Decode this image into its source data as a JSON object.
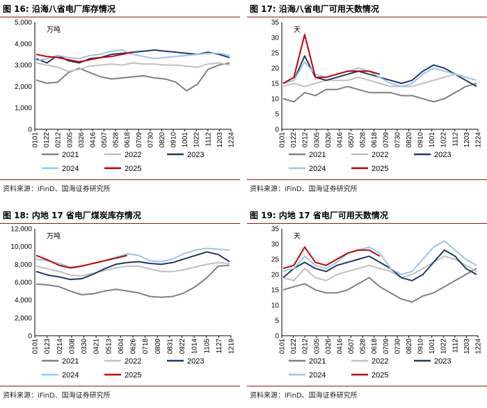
{
  "colors": {
    "2021": "#7f7f7f",
    "2022": "#bfbfbf",
    "2023": "#1f3864",
    "2024": "#9dc3e6",
    "2025": "#c00000",
    "rule": "#8a1a1a"
  },
  "charts": [
    {
      "title": "图 16:  沿海八省电厂库存情况",
      "source": "资料来源：iFinD、国海证券研究所",
      "chart_data": {
        "type": "line",
        "unit": "万吨",
        "xlabel": "",
        "ylabel": "",
        "x_ticks": [
          "0101",
          "0122",
          "0212",
          "0305",
          "0326",
          "0416",
          "0507",
          "0528",
          "0618",
          "0709",
          "0730",
          "0820",
          "0910",
          "1001",
          "1022",
          "1112",
          "1203",
          "1224"
        ],
        "ylim": [
          0,
          5000
        ],
        "y_ticks": [
          "0",
          "1,000",
          "2,000",
          "3,000",
          "4,000",
          "5,000"
        ],
        "legend": [
          "2021",
          "2022",
          "2023",
          "2024",
          "2025"
        ],
        "legend_position": "bottom",
        "series": [
          {
            "name": "2021",
            "values": [
              2300,
              2150,
              2200,
              2650,
              2850,
              2650,
              2450,
              2350,
              2400,
              2450,
              2500,
              2400,
              2350,
              2200,
              1800,
              2100,
              2800,
              3000,
              3100
            ]
          },
          {
            "name": "2022",
            "values": [
              3100,
              3000,
              2900,
              2700,
              2800,
              2950,
              3000,
              3050,
              3000,
              3100,
              3050,
              3050,
              3000,
              3000,
              2950,
              2900,
              3050,
              3100,
              3000
            ]
          },
          {
            "name": "2023",
            "values": [
              3300,
              3100,
              3450,
              3200,
              3100,
              3300,
              3350,
              3500,
              3550,
              3600,
              3650,
              3700,
              3650,
              3600,
              3550,
              3500,
              3600,
              3500,
              3350
            ]
          },
          {
            "name": "2024",
            "values": [
              3200,
              3300,
              3450,
              3350,
              3300,
              3450,
              3500,
              3650,
              3700,
              3500,
              3400,
              3300,
              3350,
              3400,
              3450,
              3500,
              3550,
              3550,
              3450
            ]
          },
          {
            "name": "2025",
            "values": [
              3500,
              3400,
              3350,
              3250,
              3150,
              3250,
              3350,
              3400,
              3500,
              3600
            ]
          }
        ]
      }
    },
    {
      "title": "图 17:  沿海八省电厂可用天数情况",
      "source": "资料来源：iFinD、国海证券研究所",
      "chart_data": {
        "type": "line",
        "unit": "天",
        "xlabel": "",
        "ylabel": "",
        "x_ticks": [
          "0101",
          "0122",
          "0212",
          "0305",
          "0326",
          "0416",
          "0507",
          "0528",
          "0618",
          "0709",
          "0730",
          "0820",
          "0910",
          "1001",
          "1022",
          "1112",
          "1203",
          "1224"
        ],
        "ylim": [
          0,
          35
        ],
        "y_ticks": [
          "0",
          "5",
          "10",
          "15",
          "20",
          "25",
          "30",
          "35"
        ],
        "legend": [
          "2021",
          "2022",
          "2023",
          "2024",
          "2025"
        ],
        "legend_position": "bottom",
        "series": [
          {
            "name": "2021",
            "values": [
              10,
              9,
              12,
              11,
              13,
              13,
              14,
              13,
              12,
              12,
              12,
              11,
              11,
              10,
              9,
              10,
              12,
              14,
              15
            ]
          },
          {
            "name": "2022",
            "values": [
              14,
              15,
              14,
              15,
              16,
              16,
              16,
              17,
              16,
              15,
              14,
              14,
              14,
              15,
              16,
              17,
              18,
              17,
              16
            ]
          },
          {
            "name": "2023",
            "values": [
              15,
              16,
              24,
              17,
              16,
              17,
              18,
              19,
              18,
              17,
              16,
              15,
              16,
              19,
              21,
              20,
              18,
              16,
              14
            ]
          },
          {
            "name": "2024",
            "values": [
              15,
              16,
              22,
              18,
              17,
              18,
              19,
              20,
              19,
              17,
              15,
              14,
              15,
              18,
              20,
              19,
              18,
              17,
              16
            ]
          },
          {
            "name": "2025",
            "values": [
              15,
              17,
              31,
              17,
              17,
              18,
              19,
              19,
              19,
              18
            ]
          }
        ]
      }
    },
    {
      "title": "图 18:  内地 17 省电厂煤炭库存情况",
      "source": "资料来源：iFinD、国海证券研究所",
      "chart_data": {
        "type": "line",
        "unit": "万吨",
        "xlabel": "",
        "ylabel": "",
        "x_ticks": [
          "0101",
          "0123",
          "0214",
          "0308",
          "0330",
          "0421",
          "0513",
          "0604",
          "0626",
          "0718",
          "0809",
          "0831",
          "0922",
          "1014",
          "1105",
          "1127",
          "1219"
        ],
        "ylim": [
          0,
          12000
        ],
        "y_ticks": [
          "0",
          "2,000",
          "4,000",
          "6,000",
          "8,000",
          "10,000",
          "12,000"
        ],
        "legend": [
          "2021",
          "2022",
          "2023",
          "2024",
          "2025"
        ],
        "legend_position": "bottom",
        "series": [
          {
            "name": "2021",
            "values": [
              5800,
              5700,
              5500,
              5000,
              4600,
              4700,
              5000,
              5200,
              5000,
              4800,
              4400,
              4300,
              4400,
              4800,
              5500,
              6500,
              7800,
              7900
            ]
          },
          {
            "name": "2022",
            "values": [
              7800,
              7500,
              7200,
              6800,
              6700,
              7000,
              7300,
              7600,
              7800,
              7800,
              7500,
              7200,
              7200,
              7400,
              7700,
              8000,
              8200,
              8100
            ]
          },
          {
            "name": "2023",
            "values": [
              7200,
              6800,
              6600,
              6300,
              6400,
              6900,
              7500,
              8000,
              8200,
              8300,
              8100,
              8000,
              8200,
              8600,
              9000,
              9400,
              9100,
              8300
            ]
          },
          {
            "name": "2024",
            "values": [
              8600,
              8400,
              8100,
              7700,
              7800,
              8100,
              8400,
              8800,
              9200,
              9000,
              8400,
              8300,
              8600,
              9200,
              9600,
              9800,
              9700,
              9600
            ]
          },
          {
            "name": "2025",
            "values": [
              9000,
              8500,
              7900,
              7600,
              7800,
              8100,
              8400,
              8700,
              9000
            ]
          }
        ]
      }
    },
    {
      "title": "图 19:  内地 17 省电厂可用天数情况",
      "source": "资料来源：iFinD、国海证券研究所",
      "chart_data": {
        "type": "line",
        "unit": "天",
        "xlabel": "",
        "ylabel": "",
        "x_ticks": [
          "0101",
          "0122",
          "0212",
          "0305",
          "0326",
          "0416",
          "0507",
          "0528",
          "0618",
          "0709",
          "0730",
          "0820",
          "0910",
          "1001",
          "1022",
          "1112",
          "1203",
          "1224"
        ],
        "ylim": [
          0,
          35
        ],
        "y_ticks": [
          "0",
          "5",
          "10",
          "15",
          "20",
          "25",
          "30",
          "35"
        ],
        "legend": [
          "2021",
          "2022",
          "2023",
          "2024",
          "2025"
        ],
        "legend_position": "bottom",
        "series": [
          {
            "name": "2021",
            "values": [
              15,
              16,
              17,
              15,
              14,
              14,
              15,
              17,
              19,
              16,
              14,
              12,
              11,
              13,
              14,
              16,
              18,
              20,
              22
            ]
          },
          {
            "name": "2022",
            "values": [
              19,
              18,
              22,
              19,
              18,
              20,
              21,
              22,
              23,
              22,
              21,
              19,
              20,
              22,
              24,
              26,
              25,
              23,
              21
            ]
          },
          {
            "name": "2023",
            "values": [
              19,
              22,
              24,
              22,
              21,
              23,
              24,
              25,
              26,
              24,
              22,
              19,
              18,
              20,
              24,
              28,
              26,
              22,
              20
            ]
          },
          {
            "name": "2024",
            "values": [
              21,
              22,
              26,
              23,
              22,
              24,
              27,
              28,
              29,
              27,
              22,
              20,
              21,
              25,
              29,
              31,
              28,
              25,
              23
            ]
          },
          {
            "name": "2025",
            "values": [
              22,
              23,
              29,
              24,
              23,
              25,
              27,
              28,
              28,
              26
            ]
          }
        ]
      }
    }
  ]
}
